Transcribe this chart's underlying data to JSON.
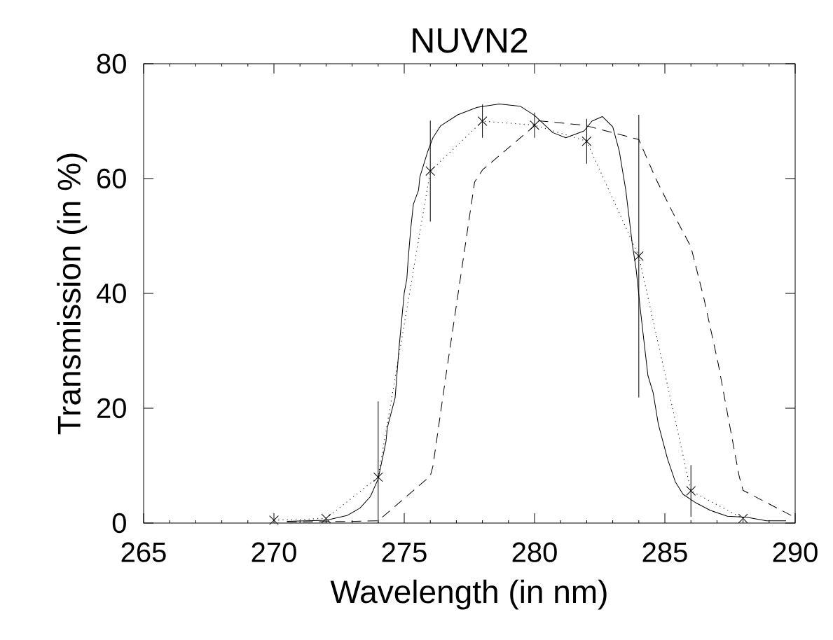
{
  "chart_data": {
    "type": "line",
    "title": "NUVN2",
    "xlabel": "Wavelength (in nm)",
    "ylabel": "Transmission (in %)",
    "xlim": [
      265,
      290
    ],
    "ylim": [
      0,
      80
    ],
    "xticks": [
      265,
      270,
      275,
      280,
      285,
      290
    ],
    "yticks": [
      0,
      20,
      40,
      60,
      80
    ],
    "grid": false,
    "series": [
      {
        "color": "#000000",
        "line_style": "solid",
        "marker": "none",
        "x": [
          270.5,
          272.0,
          272.8,
          273.3,
          273.7,
          274.0,
          274.3,
          274.35,
          274.65,
          274.8,
          275.0,
          275.1,
          275.15,
          275.25,
          275.35,
          275.55,
          275.6,
          275.9,
          276.1,
          276.4,
          277.05,
          277.8,
          278.65,
          279.45,
          280.0,
          280.7,
          281.2,
          281.9,
          282.2,
          282.6,
          283.0,
          283.25,
          283.5,
          283.75,
          283.9,
          284.05,
          284.2,
          284.35,
          284.55,
          284.75,
          285.1,
          285.4,
          285.7,
          286.2,
          286.75,
          287.4,
          288.15,
          288.9,
          289.65
        ],
        "values": [
          0.3,
          0.5,
          1.3,
          2.6,
          4.6,
          7.7,
          14.2,
          16.6,
          21.8,
          30.5,
          40.1,
          42.5,
          45.9,
          51.3,
          55.5,
          58.0,
          60.3,
          64.7,
          67.1,
          69.2,
          71.1,
          72.4,
          73.0,
          72.6,
          71.0,
          68.0,
          67.1,
          68.3,
          70.0,
          70.8,
          69.0,
          64.8,
          58.0,
          48.6,
          44.1,
          37.6,
          31.6,
          25.7,
          22.7,
          17.2,
          11.2,
          7.2,
          5.0,
          3.5,
          2.2,
          1.2,
          1.0,
          0.4,
          0.4
        ]
      },
      {
        "color": "#000000",
        "line_style": "dotted",
        "marker": "cross",
        "x": [
          270,
          272,
          274,
          276,
          278,
          280,
          282,
          284,
          286,
          288
        ],
        "values": [
          0.5,
          0.8,
          8.0,
          61.3,
          70.0,
          69.3,
          66.5,
          46.5,
          5.6,
          0.8
        ],
        "errors": [
          null,
          null,
          [
            0,
            21.2
          ],
          8.8,
          2.9,
          2.2,
          3.9,
          24.6,
          4.5,
          null
        ]
      },
      {
        "color": "#000000",
        "line_style": "dashed",
        "marker": "none",
        "x": [
          270.5,
          273.0,
          274.0,
          276.0,
          276.1,
          276.6,
          277.15,
          277.7,
          278.0,
          279.95,
          280.05,
          281.9,
          284.0,
          284.65,
          285.3,
          286.0,
          286.5,
          287.05,
          287.5,
          287.85,
          288.0,
          289.9
        ],
        "values": [
          0.2,
          0.3,
          0.4,
          8.2,
          9.9,
          25.7,
          42.5,
          59.4,
          61.5,
          69.0,
          70.1,
          69.3,
          66.8,
          60.0,
          54.1,
          48.1,
          39.1,
          27.7,
          16.7,
          8.2,
          5.7,
          1.2
        ]
      }
    ]
  }
}
